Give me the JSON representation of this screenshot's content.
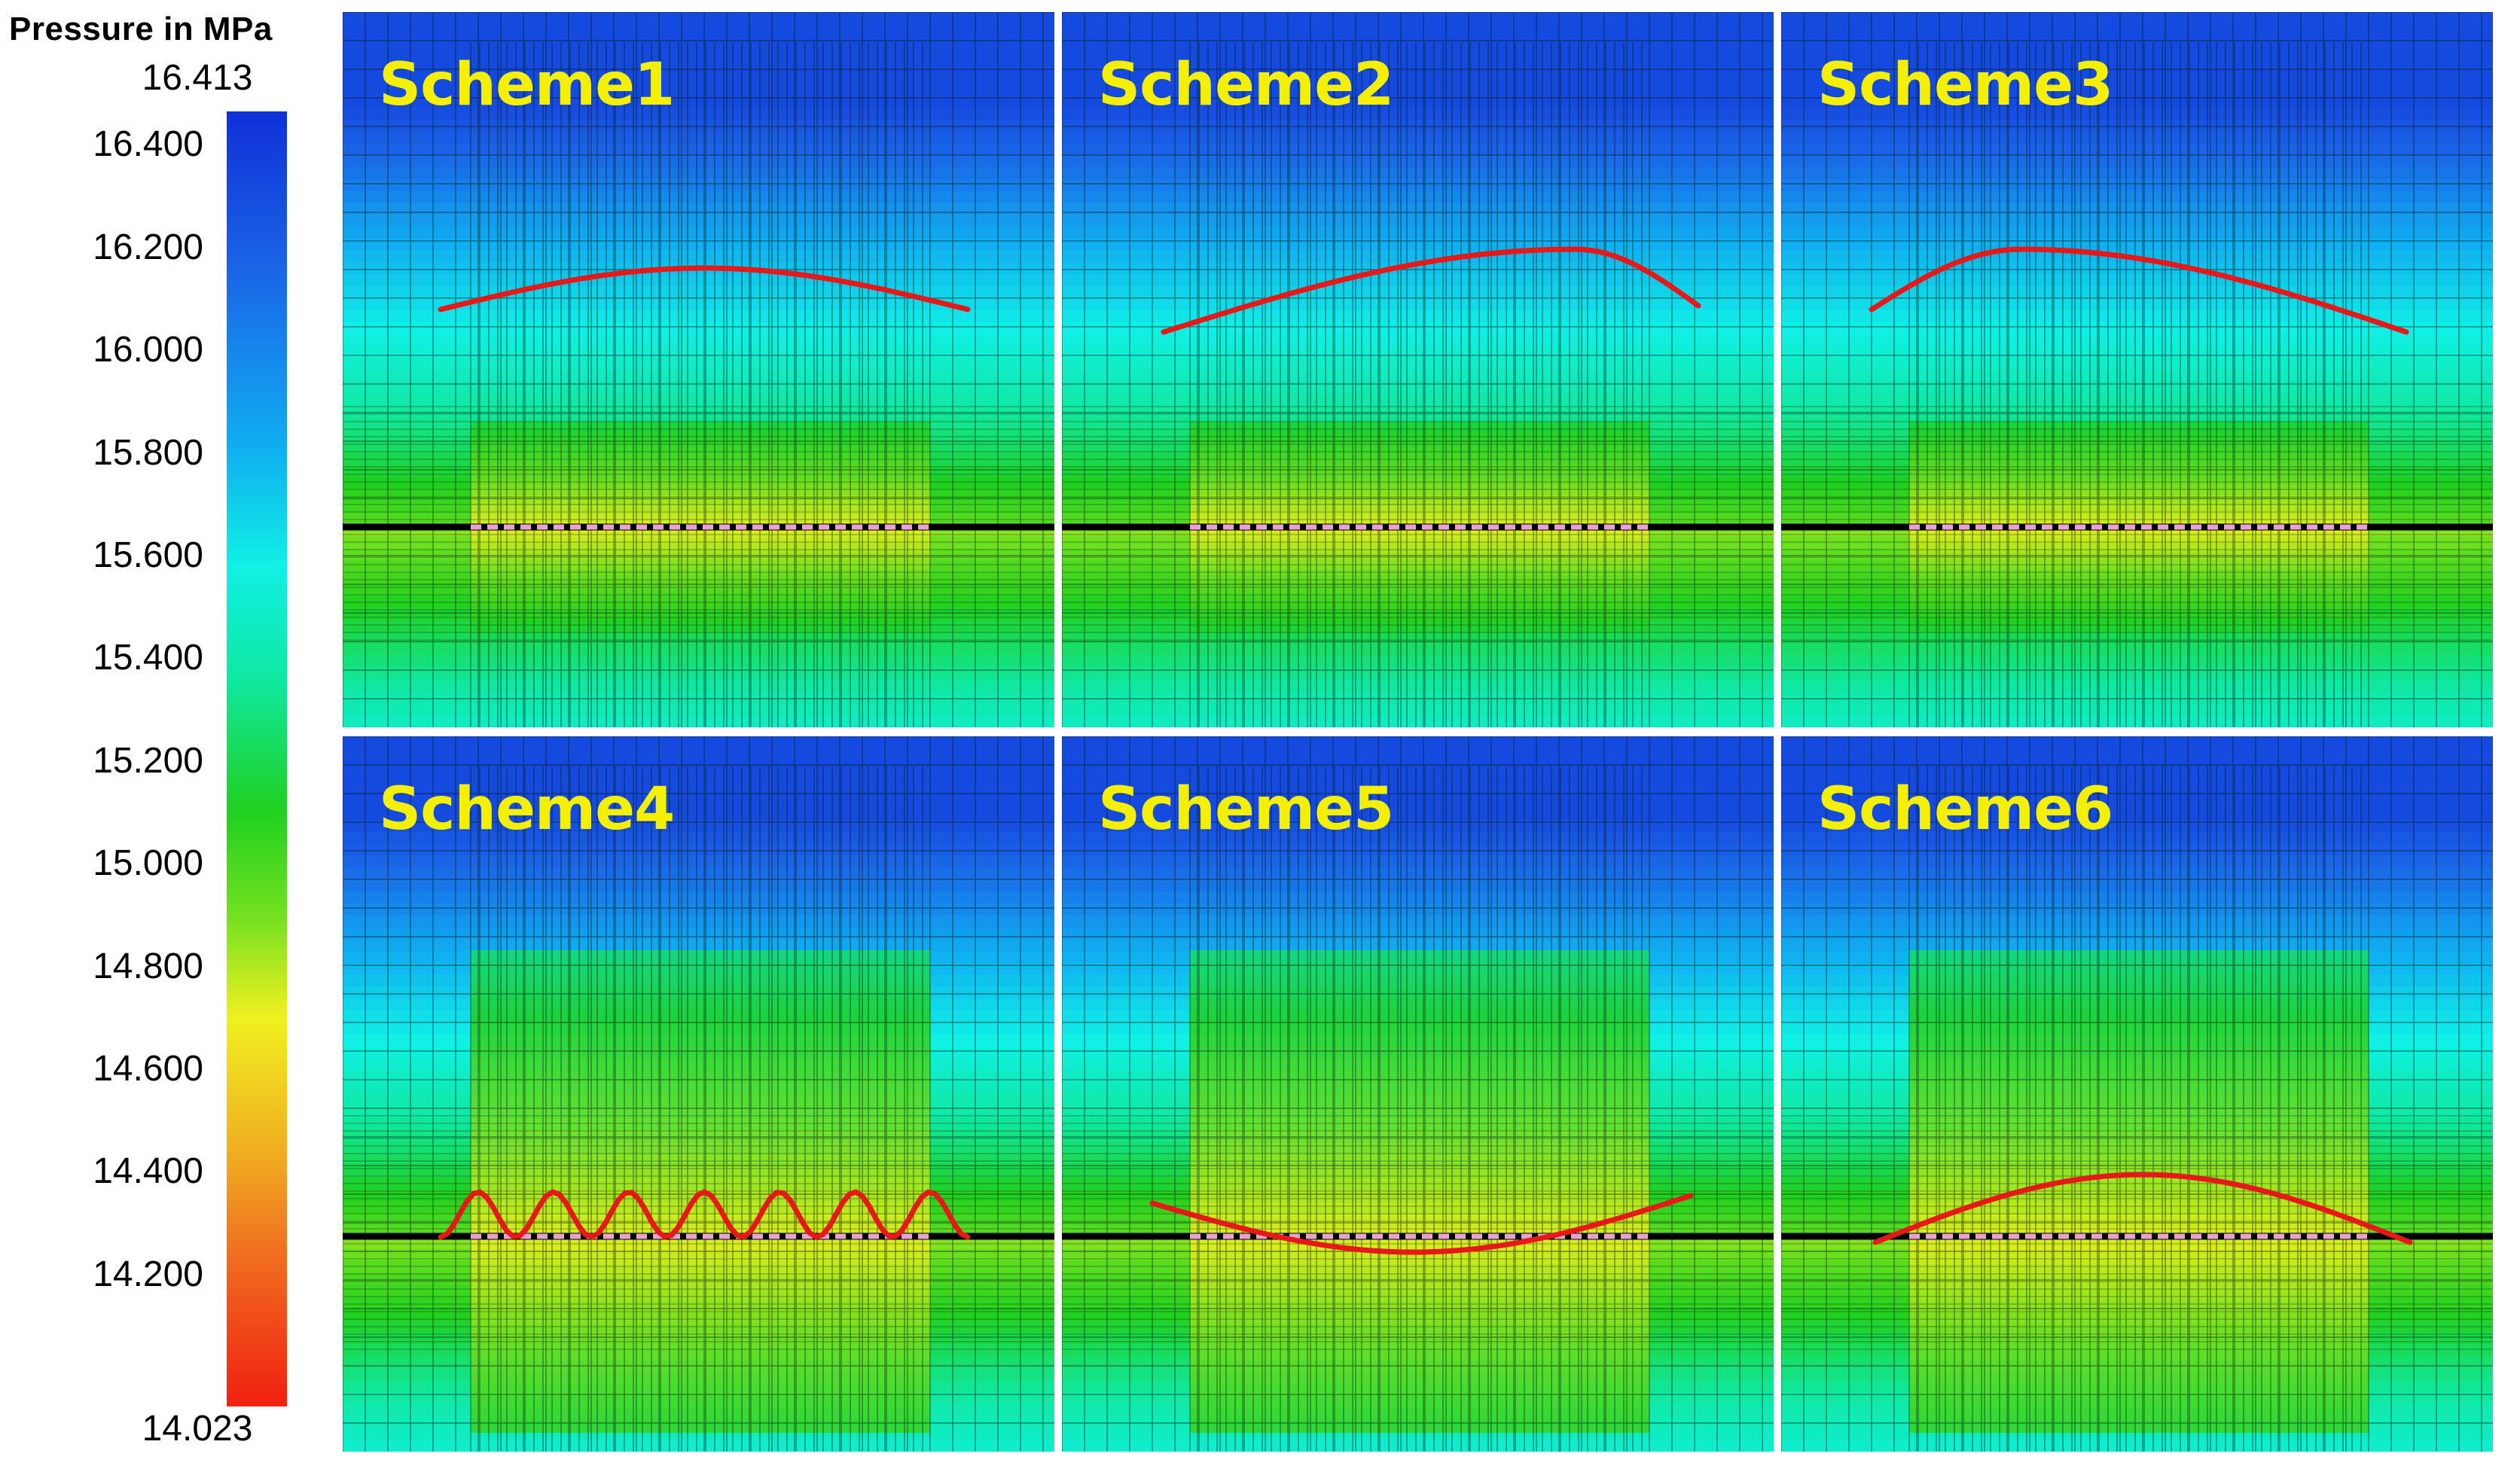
{
  "legend": {
    "title": "Pressure  in MPa",
    "max": "16.413",
    "min": "14.023",
    "ticks": [
      "16.400",
      "16.200",
      "16.000",
      "15.800",
      "15.600",
      "15.400",
      "15.200",
      "15.000",
      "14.800",
      "14.600",
      "14.400",
      "14.200"
    ]
  },
  "colorbar_colors": [
    "#1030d8",
    "#1a64e6",
    "#10aef0",
    "#10f0e6",
    "#10e8a0",
    "#20d020",
    "#70e020",
    "#f0f020",
    "#f0b020",
    "#f07020",
    "#f02010"
  ],
  "panels": [
    {
      "label": "Scheme1",
      "curve": "arch-flat"
    },
    {
      "label": "Scheme2",
      "curve": "arch-peak-right"
    },
    {
      "label": "Scheme3",
      "curve": "arch-peak-left"
    },
    {
      "label": "Scheme4",
      "curve": "sinusoidal"
    },
    {
      "label": "Scheme5",
      "curve": "sag"
    },
    {
      "label": "Scheme6",
      "curve": "arch-centered"
    }
  ]
}
